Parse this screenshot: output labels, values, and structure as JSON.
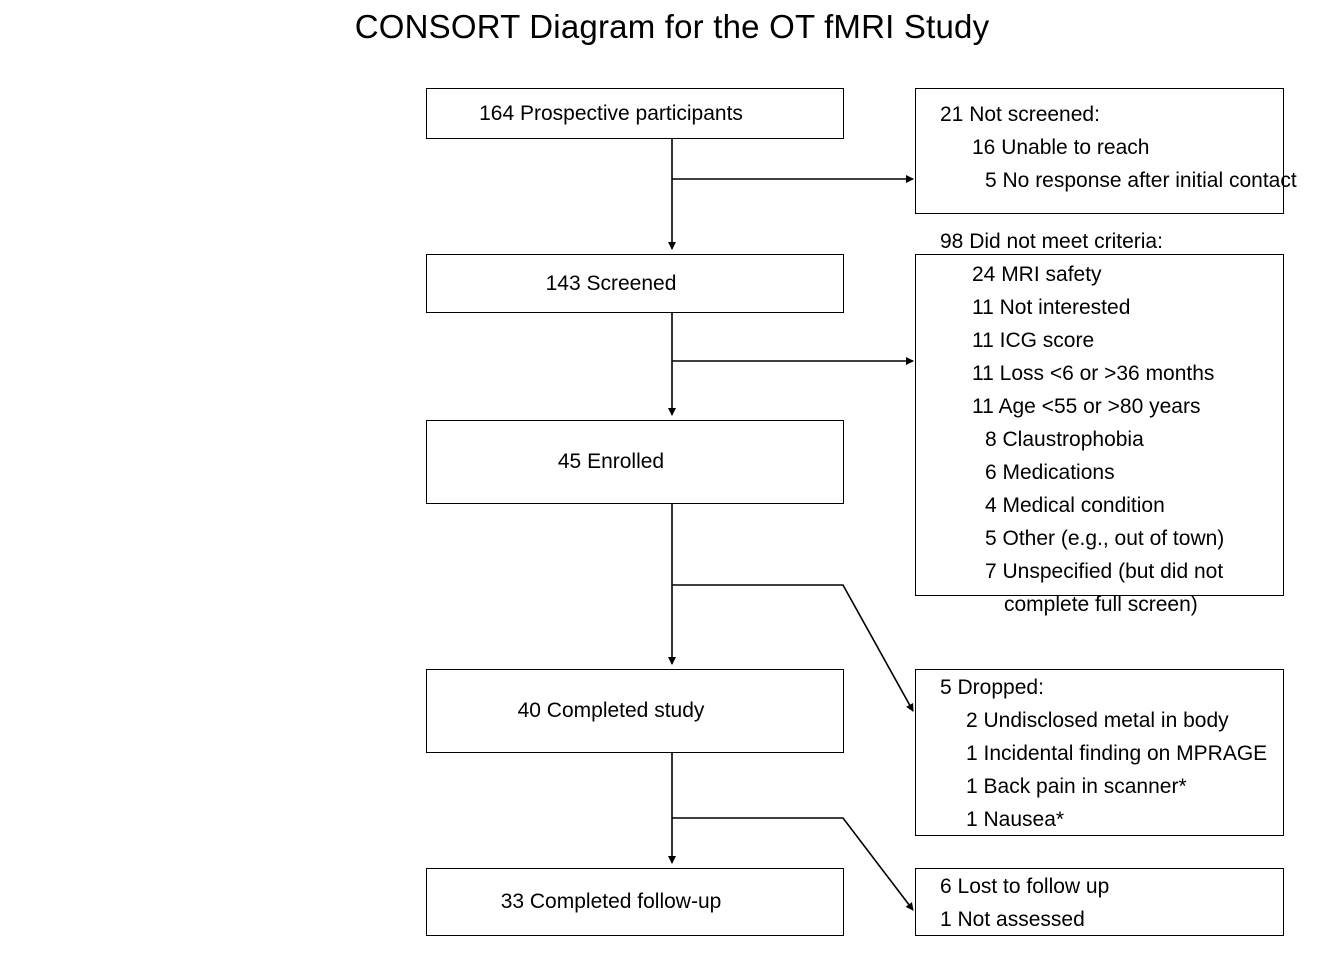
{
  "title": "CONSORT Diagram for the OT fMRI Study",
  "flow": {
    "prospective": "164 Prospective participants",
    "screened": "143 Screened",
    "enrolled": "45 Enrolled",
    "completed_study": "40 Completed study",
    "completed_followup": "33 Completed follow-up"
  },
  "not_screened": {
    "heading": "21 Not screened:",
    "items": [
      "16 Unable to reach",
      "5 No response after initial contact"
    ]
  },
  "did_not_meet": {
    "heading": "98 Did not meet criteria:",
    "items": [
      "24 MRI safety",
      "11 Not interested",
      "11 ICG score",
      "11 Loss <6 or >36 months",
      "11 Age <55 or >80 years",
      "8 Claustrophobia",
      "6 Medications",
      "4 Medical condition",
      "5 Other (e.g., out of town)",
      "7 Unspecified (but did not",
      "complete full screen)"
    ]
  },
  "dropped": {
    "heading": "5 Dropped:",
    "items": [
      "2 Undisclosed metal in body",
      "1 Incidental finding on MPRAGE",
      "1 Back pain in scanner*",
      "1 Nausea*"
    ]
  },
  "lost": {
    "items": [
      "6 Lost to follow up",
      "1 Not assessed"
    ]
  }
}
